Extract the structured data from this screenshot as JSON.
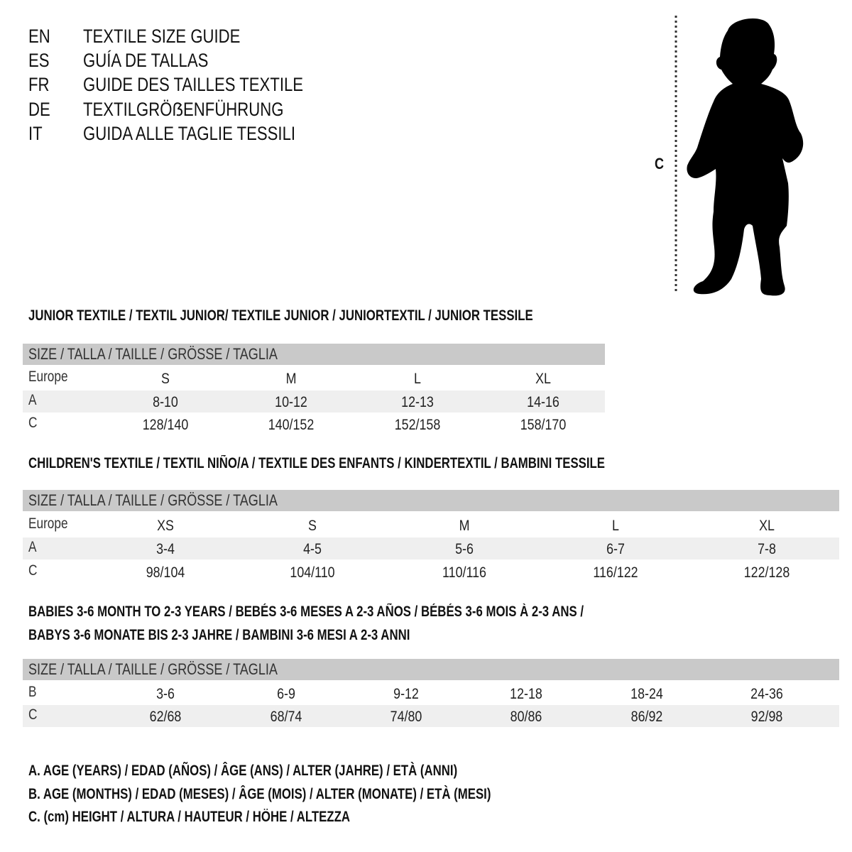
{
  "titles": [
    {
      "code": "EN",
      "text": "TEXTILE SIZE GUIDE"
    },
    {
      "code": "ES",
      "text": "GUÍA DE TALLAS"
    },
    {
      "code": "FR",
      "text": "GUIDE DES TAILLES TEXTILE"
    },
    {
      "code": "DE",
      "text": "TEXTILGRÖẞENFÜHRUNG"
    },
    {
      "code": "IT",
      "text": "GUIDA ALLE TAGLIE TESSILI"
    }
  ],
  "figure": {
    "measure_label": "C",
    "icon": "child-silhouette"
  },
  "size_header": "SIZE / TALLA / TAILLE / GRÖSSE / TAGLIA",
  "colors": {
    "header_band": "#c9c9c9",
    "alt_row": "#efefef"
  },
  "sections": [
    {
      "title_lines": [
        "JUNIOR TEXTILE / TEXTIL JUNIOR/ TEXTILE JUNIOR / JUNIORTEXTIL / JUNIOR TESSILE"
      ],
      "rows": [
        {
          "label": "Europe",
          "values": [
            "S",
            "M",
            "L",
            "XL"
          ]
        },
        {
          "label": "A",
          "values": [
            "8-10",
            "10-12",
            "12-13",
            "14-16"
          ]
        },
        {
          "label": "C",
          "values": [
            "128/140",
            "140/152",
            "152/158",
            "158/170"
          ]
        }
      ]
    },
    {
      "title_lines": [
        "CHILDREN'S TEXTILE / TEXTIL NIÑO/A / TEXTILE DES ENFANTS / KINDERTEXTIL / BAMBINI TESSILE"
      ],
      "rows": [
        {
          "label": "Europe",
          "values": [
            "XS",
            "S",
            "M",
            "L",
            "XL"
          ]
        },
        {
          "label": "A",
          "values": [
            "3-4",
            "4-5",
            "5-6",
            "6-7",
            "7-8"
          ]
        },
        {
          "label": "C",
          "values": [
            "98/104",
            "104/110",
            "110/116",
            "116/122",
            "122/128"
          ]
        }
      ]
    },
    {
      "title_lines": [
        "BABIES 3-6 MONTH TO 2-3 YEARS / BEBÉS 3-6 MESES A 2-3 AÑOS / BÉBÉS 3-6 MOIS À 2-3 ANS /",
        "BABYS 3-6 MONATE BIS 2-3 JAHRE / BAMBINI 3-6 MESI A 2-3 ANNI"
      ],
      "rows": [
        {
          "label": "B",
          "values": [
            "3-6",
            "6-9",
            "9-12",
            "12-18",
            "18-24",
            "24-36"
          ]
        },
        {
          "label": "C",
          "values": [
            "62/68",
            "68/74",
            "74/80",
            "80/86",
            "86/92",
            "92/98"
          ]
        }
      ]
    }
  ],
  "legend": [
    "A. AGE (YEARS) / EDAD (AÑOS) / ÂGE (ANS) / ALTER (JAHRE) / ETÀ (ANNI)",
    "B. AGE (MONTHS) / EDAD (MESES) / ÂGE (MOIS) / ALTER (MONATE) / ETÀ (MESI)",
    "C. (cm) HEIGHT / ALTURA / HAUTEUR / HÖHE / ALTEZZA"
  ]
}
